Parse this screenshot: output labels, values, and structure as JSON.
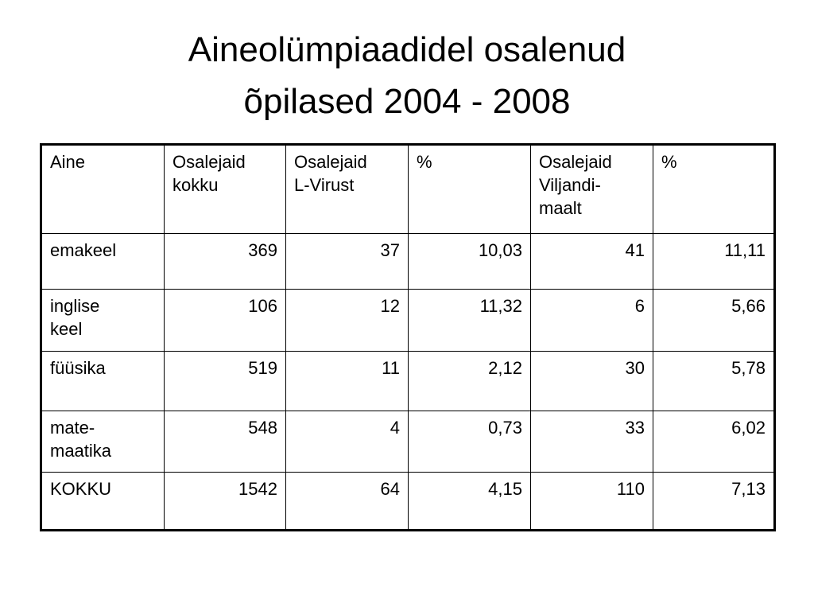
{
  "title": "Aineolümpiaadidel osalenud\nõpilased 2004 - 2008",
  "table": {
    "header": [
      "Aine",
      "Osalejaid\nkokku",
      "Osalejaid\nL-Virust",
      "%",
      "Osalejaid\nViljandi-\nmaalt",
      "%"
    ],
    "rows": [
      [
        "emakeel",
        "369",
        "37",
        "10,03",
        "41",
        "11,11"
      ],
      [
        "inglise\nkeel",
        "106",
        "12",
        "11,32",
        "6",
        "5,66"
      ],
      [
        "füüsika",
        "519",
        "11",
        "2,12",
        "30",
        "5,78"
      ],
      [
        "mate-\nmaatika",
        "548",
        "4",
        "0,73",
        "33",
        "6,02"
      ],
      [
        "KOKKU",
        "1542",
        "64",
        "4,15",
        "110",
        "7,13"
      ]
    ]
  }
}
